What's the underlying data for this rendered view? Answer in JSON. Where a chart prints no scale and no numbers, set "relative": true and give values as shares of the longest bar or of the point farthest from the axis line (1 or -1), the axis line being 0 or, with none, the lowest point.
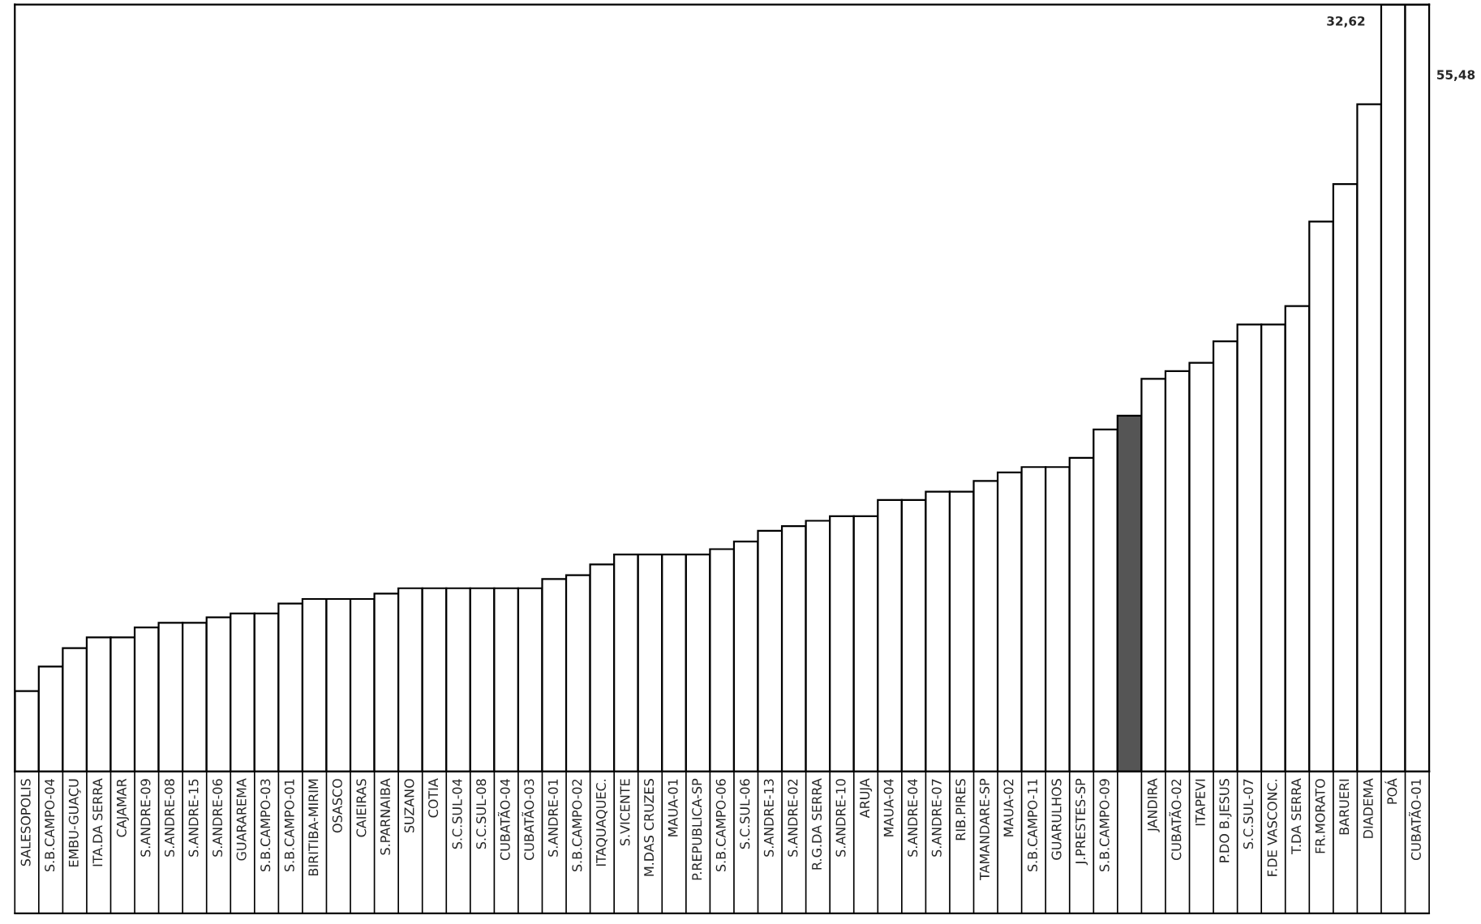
{
  "chart_data": {
    "type": "bar",
    "relative": true,
    "categories": [
      "SALESOPOLIS",
      "S.B.CAMPO-04",
      "EMBU-GUAÇU",
      "ITA.DA SERRA",
      "CAJAMAR",
      "S.ANDRE-09",
      "S.ANDRE-08",
      "S.ANDRE-15",
      "S.ANDRE-06",
      "GUARAREMA",
      "S.B.CAMPO-03",
      "S.B.CAMPO-01",
      "BIRITIBA-MIRIM",
      "OSASCO",
      "CAIEIRAS",
      "S.PARNAIBA",
      "SUZANO",
      "COTIA",
      "S.C.SUL-04",
      "S.C.SUL-08",
      "CUBATÃO-04",
      "CUBATÃO-03",
      "S.ANDRE-01",
      "S.B.CAMPO-02",
      "ITAQUAQUEC.",
      "S.VICENTE",
      "M.DAS CRUZES",
      "MAUA-01",
      "P.REPUBLICA-SP",
      "S.B.CAMPO-06",
      "S.C.SUL-06",
      "S.ANDRE-13",
      "S.ANDRE-02",
      "R.G.DA SERRA",
      "S.ANDRE-10",
      "ARUJA",
      "MAUA-04",
      "S.ANDRE-04",
      "S.ANDRE-07",
      "RIB.PIRES",
      "TAMANDARE-SP",
      "MAUA-02",
      "S.B.CAMPO-11",
      "GUARULHOS",
      "J.PRESTES-SP",
      "S.B.CAMPO-09",
      null,
      "JANDIRA",
      "CUBATÃO-02",
      "ITAPEVI",
      "P.DO B.JESUS",
      "S.C.SUL-07",
      "F.DE VASCONC.",
      "T.DA SERRA",
      "FR.MORATO",
      "BARUERI",
      "DIADEMA",
      "POÁ",
      "CUBATÃO-01"
    ],
    "values": [
      0.105,
      0.137,
      0.161,
      0.175,
      0.175,
      0.188,
      0.194,
      0.194,
      0.201,
      0.206,
      0.206,
      0.219,
      0.225,
      0.225,
      0.225,
      0.232,
      0.239,
      0.239,
      0.239,
      0.239,
      0.239,
      0.239,
      0.251,
      0.256,
      0.27,
      0.283,
      0.283,
      0.283,
      0.283,
      0.29,
      0.3,
      0.314,
      0.32,
      0.327,
      0.333,
      0.333,
      0.354,
      0.354,
      0.365,
      0.365,
      0.379,
      0.39,
      0.397,
      0.397,
      0.409,
      0.446,
      0.464,
      0.512,
      0.522,
      0.533,
      0.561,
      0.583,
      0.583,
      0.607,
      0.717,
      0.766,
      0.87,
      1,
      1
    ],
    "colors": [
      "#ffffff",
      "#ffffff",
      "#ffffff",
      "#ffffff",
      "#ffffff",
      "#ffffff",
      "#ffffff",
      "#ffffff",
      "#ffffff",
      "#ffffff",
      "#ffffff",
      "#ffffff",
      "#ffffff",
      "#ffffff",
      "#ffffff",
      "#ffffff",
      "#ffffff",
      "#ffffff",
      "#ffffff",
      "#ffffff",
      "#ffffff",
      "#ffffff",
      "#ffffff",
      "#ffffff",
      "#ffffff",
      "#ffffff",
      "#ffffff",
      "#ffffff",
      "#ffffff",
      "#ffffff",
      "#ffffff",
      "#ffffff",
      "#ffffff",
      "#ffffff",
      "#ffffff",
      "#ffffff",
      "#ffffff",
      "#ffffff",
      "#ffffff",
      "#ffffff",
      "#ffffff",
      "#ffffff",
      "#ffffff",
      "#ffffff",
      "#ffffff",
      "#ffffff",
      "#555555",
      "#ffffff",
      "#ffffff",
      "#ffffff",
      "#ffffff",
      "#ffffff",
      "#ffffff",
      "#ffffff",
      "#ffffff",
      "#ffffff",
      "#ffffff",
      "#ffffff",
      "#ffffff"
    ],
    "annotations": [
      "32,62",
      "55,48"
    ],
    "grid": false,
    "legend": false
  }
}
